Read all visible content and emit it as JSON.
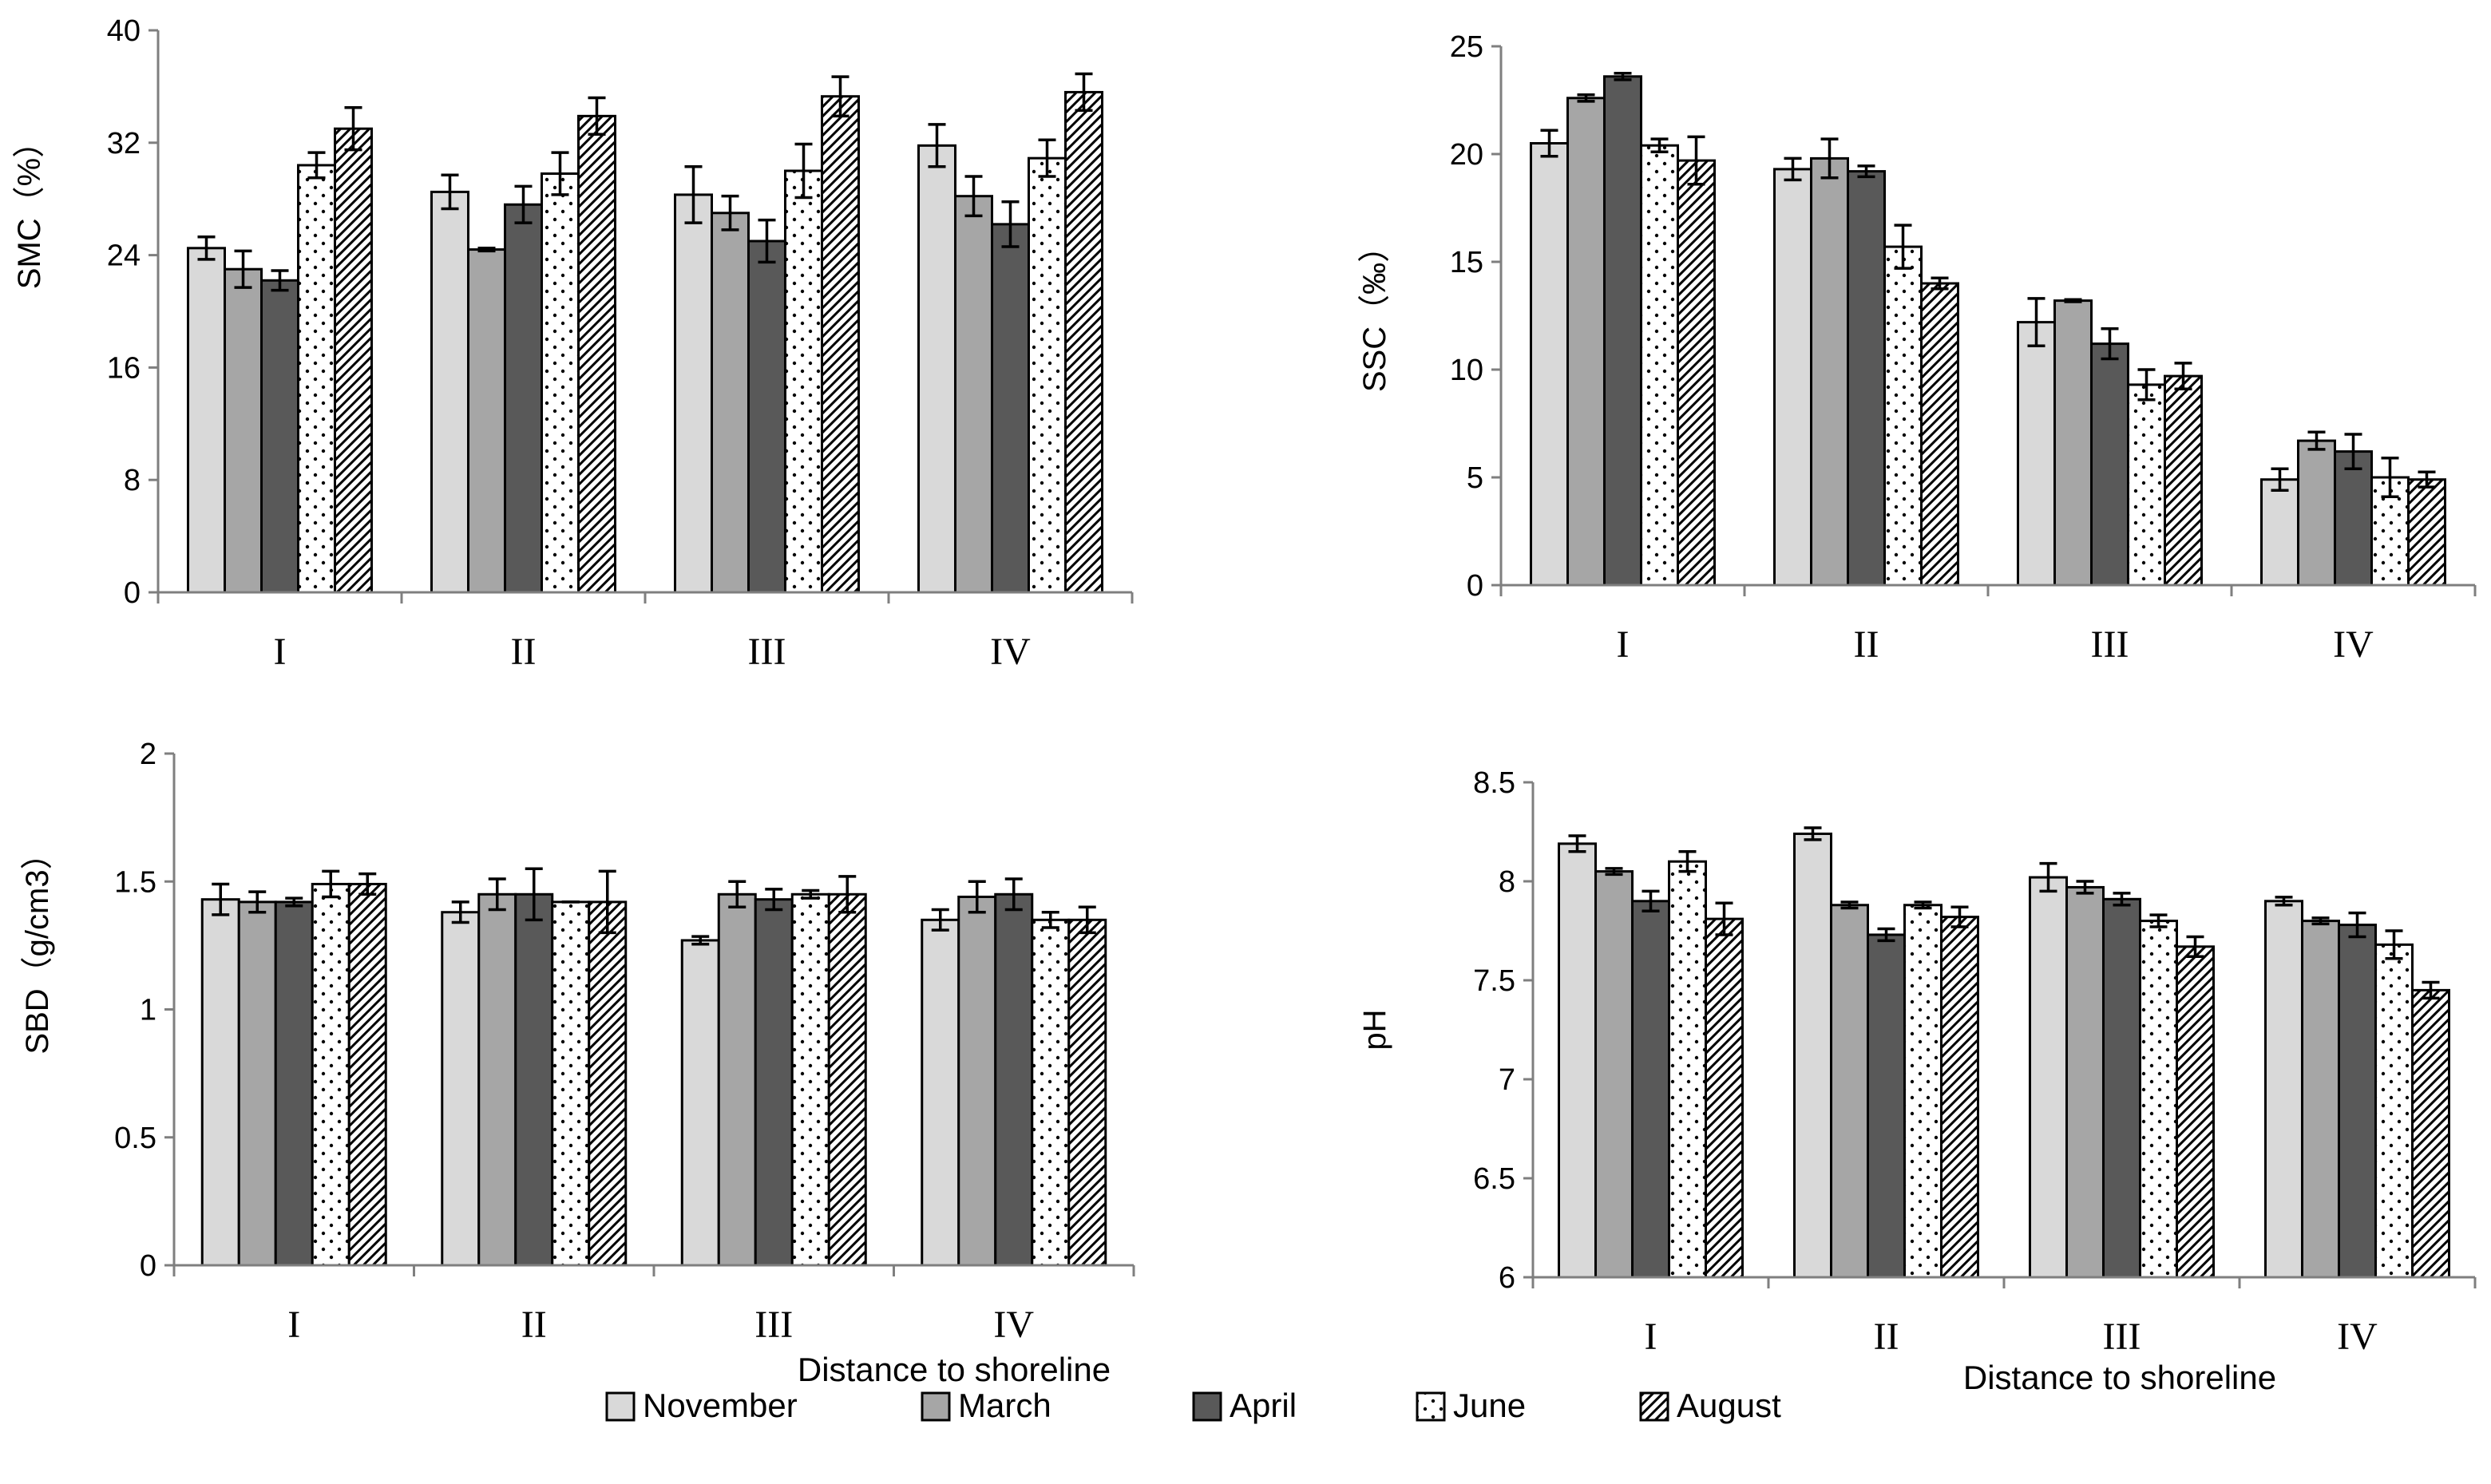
{
  "series_styles": [
    {
      "name": "November",
      "fill": "#d9d9d9",
      "pattern": "none"
    },
    {
      "name": "March",
      "fill": "#a6a6a6",
      "pattern": "none"
    },
    {
      "name": "April",
      "fill": "#595959",
      "pattern": "none"
    },
    {
      "name": "June",
      "fill": "#ffffff",
      "pattern": "dots"
    },
    {
      "name": "August",
      "fill": "#ffffff",
      "pattern": "diagonal"
    }
  ],
  "legend": [
    "November",
    "March",
    "April",
    "June",
    "August"
  ],
  "chart_data": [
    {
      "type": "bar",
      "categories": [
        "I",
        "II",
        "III",
        "IV"
      ],
      "ylabel": "SMC（%）",
      "xlabel": "",
      "ylim": [
        0,
        40
      ],
      "yticks": [
        "0",
        "8",
        "16",
        "24",
        "32",
        "40"
      ],
      "series": [
        {
          "name": "November",
          "values": [
            24.5,
            28.5,
            28.3,
            31.8
          ],
          "errors": [
            0.8,
            1.2,
            2.0,
            1.5
          ]
        },
        {
          "name": "March",
          "values": [
            23.0,
            24.4,
            27.0,
            28.2
          ],
          "errors": [
            1.3,
            0.1,
            1.2,
            1.4
          ]
        },
        {
          "name": "April",
          "values": [
            22.2,
            27.6,
            25.0,
            26.2
          ],
          "errors": [
            0.7,
            1.3,
            1.5,
            1.6
          ]
        },
        {
          "name": "June",
          "values": [
            30.4,
            29.8,
            30.0,
            30.9
          ],
          "errors": [
            0.9,
            1.5,
            1.9,
            1.3
          ]
        },
        {
          "name": "August",
          "values": [
            33.0,
            33.9,
            35.3,
            35.6
          ],
          "errors": [
            1.5,
            1.3,
            1.4,
            1.3
          ]
        }
      ]
    },
    {
      "type": "bar",
      "categories": [
        "I",
        "II",
        "III",
        "IV"
      ],
      "ylabel": "SSC（‰）",
      "xlabel": "",
      "ylim": [
        0,
        25
      ],
      "yticks": [
        "0",
        "5",
        "10",
        "15",
        "20",
        "25"
      ],
      "series": [
        {
          "name": "November",
          "values": [
            20.5,
            19.3,
            12.2,
            4.9
          ],
          "errors": [
            0.6,
            0.5,
            1.1,
            0.5
          ]
        },
        {
          "name": "March",
          "values": [
            22.6,
            19.8,
            13.2,
            6.7
          ],
          "errors": [
            0.15,
            0.9,
            0.05,
            0.4
          ]
        },
        {
          "name": "April",
          "values": [
            23.6,
            19.2,
            11.2,
            6.2
          ],
          "errors": [
            0.15,
            0.25,
            0.7,
            0.8
          ]
        },
        {
          "name": "June",
          "values": [
            20.4,
            15.7,
            9.3,
            5.0
          ],
          "errors": [
            0.3,
            1.0,
            0.7,
            0.9
          ]
        },
        {
          "name": "August",
          "values": [
            19.7,
            14.0,
            9.7,
            4.9
          ],
          "errors": [
            1.1,
            0.25,
            0.6,
            0.35
          ]
        }
      ]
    },
    {
      "type": "bar",
      "categories": [
        "I",
        "II",
        "III",
        "IV"
      ],
      "ylabel": "SBD（g/cm3）",
      "xlabel": "Distance to shoreline",
      "ylim": [
        0,
        2
      ],
      "yticks": [
        "0",
        "0.5",
        "1",
        "1.5",
        "2"
      ],
      "series": [
        {
          "name": "November",
          "values": [
            1.43,
            1.38,
            1.27,
            1.35
          ],
          "errors": [
            0.06,
            0.04,
            0.015,
            0.04
          ]
        },
        {
          "name": "March",
          "values": [
            1.42,
            1.45,
            1.45,
            1.44
          ],
          "errors": [
            0.04,
            0.06,
            0.05,
            0.06
          ]
        },
        {
          "name": "April",
          "values": [
            1.42,
            1.45,
            1.43,
            1.45
          ],
          "errors": [
            0.015,
            0.1,
            0.04,
            0.06
          ]
        },
        {
          "name": "June",
          "values": [
            1.49,
            1.42,
            1.45,
            1.35
          ],
          "errors": [
            0.05,
            0.0,
            0.015,
            0.03
          ]
        },
        {
          "name": "August",
          "values": [
            1.49,
            1.42,
            1.45,
            1.35
          ],
          "errors": [
            0.04,
            0.12,
            0.07,
            0.05
          ]
        }
      ]
    },
    {
      "type": "bar",
      "categories": [
        "I",
        "II",
        "III",
        "IV"
      ],
      "ylabel": "pH",
      "xlabel": "Distance to shoreline",
      "ylim": [
        6,
        8.5
      ],
      "yticks": [
        "6",
        "6.5",
        "7",
        "7.5",
        "8",
        "8.5"
      ],
      "series": [
        {
          "name": "November",
          "values": [
            8.19,
            8.24,
            8.02,
            7.9
          ],
          "errors": [
            0.04,
            0.03,
            0.07,
            0.02
          ]
        },
        {
          "name": "March",
          "values": [
            8.05,
            7.88,
            7.97,
            7.8
          ],
          "errors": [
            0.015,
            0.015,
            0.03,
            0.015
          ]
        },
        {
          "name": "April",
          "values": [
            7.9,
            7.73,
            7.91,
            7.78
          ],
          "errors": [
            0.05,
            0.03,
            0.03,
            0.06
          ]
        },
        {
          "name": "June",
          "values": [
            8.1,
            7.88,
            7.8,
            7.68
          ],
          "errors": [
            0.05,
            0.015,
            0.03,
            0.07
          ]
        },
        {
          "name": "August",
          "values": [
            7.81,
            7.82,
            7.67,
            7.45
          ],
          "errors": [
            0.08,
            0.05,
            0.05,
            0.04
          ]
        }
      ]
    }
  ]
}
